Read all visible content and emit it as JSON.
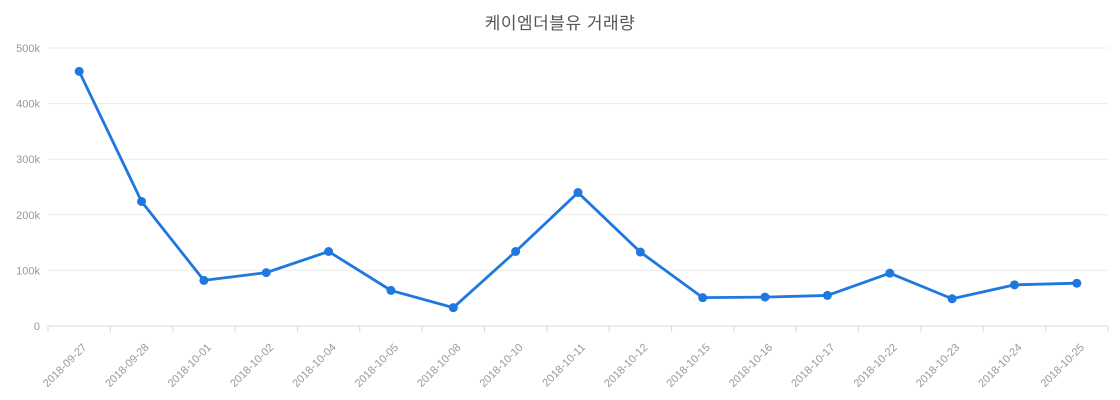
{
  "chart_data": {
    "type": "line",
    "title": "케이엠더블유 거래량",
    "xlabel": "",
    "ylabel": "",
    "categories": [
      "2018-09-27",
      "2018-09-28",
      "2018-10-01",
      "2018-10-02",
      "2018-10-04",
      "2018-10-05",
      "2018-10-08",
      "2018-10-10",
      "2018-10-11",
      "2018-10-12",
      "2018-10-15",
      "2018-10-16",
      "2018-10-17",
      "2018-10-22",
      "2018-10-23",
      "2018-10-24",
      "2018-10-25"
    ],
    "series": [
      {
        "name": "거래량",
        "values": [
          458000,
          224000,
          82000,
          96000,
          134000,
          64000,
          33000,
          134000,
          240000,
          133000,
          51000,
          52000,
          55000,
          95000,
          49000,
          74000,
          77000
        ]
      }
    ],
    "ylim": [
      0,
      500000
    ],
    "y_ticks": [
      0,
      100000,
      200000,
      300000,
      400000,
      500000
    ],
    "y_tick_labels": [
      "0",
      "100k",
      "200k",
      "300k",
      "400k",
      "500k"
    ],
    "grid": "horizontal",
    "legend_position": "none",
    "marker": "circle",
    "x_label_rotation_deg": -45,
    "colors": {
      "line": "#1e78dd",
      "marker": "#1e78dd",
      "gridline": "#ececec",
      "axis_line": "#d8d8d8",
      "title_text": "#565656",
      "tick_text": "#999999",
      "background": "#ffffff"
    }
  }
}
